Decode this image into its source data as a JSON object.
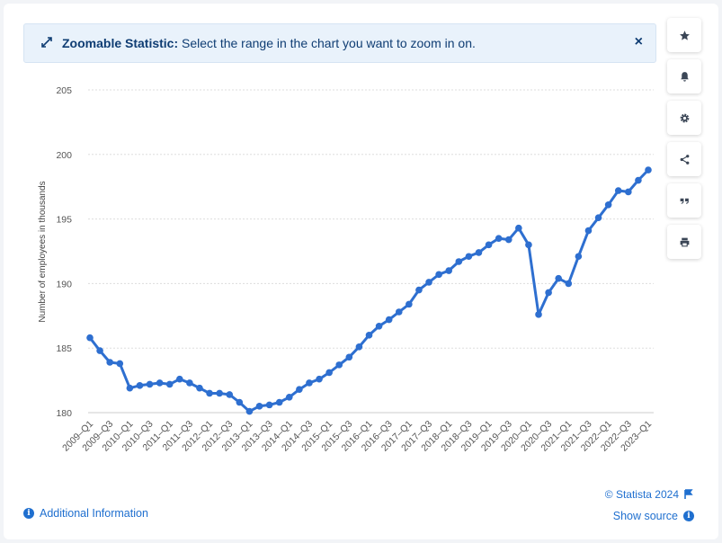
{
  "banner": {
    "title": "Zoomable Statistic:",
    "message": "Select the range in the chart you want to zoom in on.",
    "close_label": "×"
  },
  "toolbar": {
    "icons": [
      "star-icon",
      "bell-icon",
      "gear-icon",
      "share-icon",
      "quote-icon",
      "print-icon"
    ]
  },
  "footer": {
    "additional_info": "Additional Information",
    "copyright": "© Statista 2024",
    "show_source": "Show source"
  },
  "colors": {
    "line": "#2e6fd0",
    "accent": "#1f6fcf",
    "banner_bg": "#e9f2fb"
  },
  "chart_data": {
    "type": "line",
    "title": "",
    "xlabel": "",
    "ylabel": "Number of employees in thousands",
    "ylim": [
      180,
      205
    ],
    "yticks": [
      180,
      185,
      190,
      195,
      200,
      205
    ],
    "grid": true,
    "x_tick_labels": [
      "2009–Q1",
      "2009–Q3",
      "2010–Q1",
      "2010–Q3",
      "2011–Q1",
      "2011–Q3",
      "2012–Q1",
      "2012–Q3",
      "2013–Q1",
      "2013–Q3",
      "2014–Q1",
      "2014–Q3",
      "2015–Q1",
      "2015–Q3",
      "2016–Q1",
      "2016–Q3",
      "2017–Q1",
      "2017–Q3",
      "2018–Q1",
      "2018–Q3",
      "2019–Q1",
      "2019–Q3",
      "2020–Q1",
      "2020–Q3",
      "2021–Q1",
      "2021–Q3",
      "2022–Q1",
      "2022–Q3",
      "2023–Q1"
    ],
    "x": [
      "2009–Q1",
      "2009–Q2",
      "2009–Q3",
      "2009–Q4",
      "2010–Q1",
      "2010–Q2",
      "2010–Q3",
      "2010–Q4",
      "2011–Q1",
      "2011–Q2",
      "2011–Q3",
      "2011–Q4",
      "2012–Q1",
      "2012–Q2",
      "2012–Q3",
      "2012–Q4",
      "2013–Q1",
      "2013–Q2",
      "2013–Q3",
      "2013–Q4",
      "2014–Q1",
      "2014–Q2",
      "2014–Q3",
      "2014–Q4",
      "2015–Q1",
      "2015–Q2",
      "2015–Q3",
      "2015–Q4",
      "2016–Q1",
      "2016–Q2",
      "2016–Q3",
      "2016–Q4",
      "2017–Q1",
      "2017–Q2",
      "2017–Q3",
      "2017–Q4",
      "2018–Q1",
      "2018–Q2",
      "2018–Q3",
      "2018–Q4",
      "2019–Q1",
      "2019–Q2",
      "2019–Q3",
      "2019–Q4",
      "2020–Q1",
      "2020–Q2",
      "2020–Q3",
      "2020–Q4",
      "2021–Q1",
      "2021–Q2",
      "2021–Q3",
      "2021–Q4",
      "2022–Q1",
      "2022–Q2",
      "2022–Q3",
      "2022–Q4",
      "2023–Q1"
    ],
    "series": [
      {
        "values": [
          185.8,
          184.8,
          183.9,
          183.8,
          181.9,
          182.1,
          182.2,
          182.3,
          182.2,
          182.6,
          182.3,
          181.9,
          181.5,
          181.5,
          181.4,
          180.8,
          180.1,
          180.5,
          180.6,
          180.8,
          181.2,
          181.8,
          182.3,
          182.6,
          183.1,
          183.7,
          184.3,
          185.1,
          186.0,
          186.7,
          187.2,
          187.8,
          188.4,
          189.5,
          190.1,
          190.7,
          191.0,
          191.7,
          192.1,
          192.4,
          193.0,
          193.5,
          193.4,
          194.3,
          193.0,
          187.6,
          189.3,
          190.4,
          190.0,
          192.1,
          194.1,
          195.1,
          196.1,
          197.2,
          197.1,
          198.0,
          198.8
        ]
      }
    ]
  }
}
